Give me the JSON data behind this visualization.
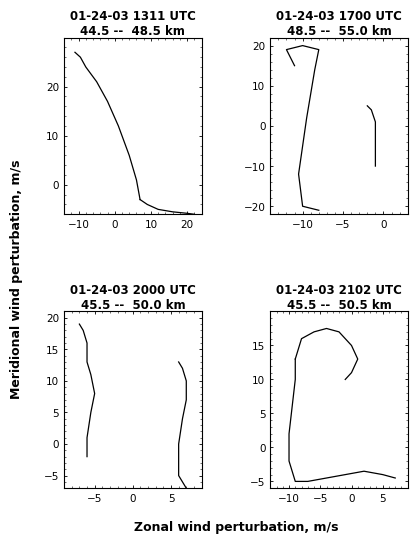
{
  "plots": [
    {
      "title_line1": "01-24-03 1311 UTC",
      "title_line2": "44.5 --  48.5 km",
      "xlim": [
        -14,
        24
      ],
      "ylim": [
        -6,
        30
      ],
      "xticks": [
        -10,
        0,
        10,
        20
      ],
      "yticks": [
        0,
        10,
        20
      ],
      "segments": [
        [
          [
            -11,
            27
          ],
          [
            -9.5,
            26
          ],
          [
            -8,
            24
          ],
          [
            -5,
            21
          ],
          [
            -2,
            17
          ],
          [
            1,
            12
          ],
          [
            4,
            6
          ],
          [
            6,
            1
          ],
          [
            7,
            -3
          ]
        ],
        [
          [
            7,
            -3
          ],
          [
            9,
            -4
          ],
          [
            12,
            -5
          ],
          [
            16,
            -5.5
          ],
          [
            20,
            -5.8
          ],
          [
            22,
            -6
          ]
        ]
      ]
    },
    {
      "title_line1": "01-24-03 1700 UTC",
      "title_line2": "48.5 --  55.0 km",
      "xlim": [
        -14,
        3
      ],
      "ylim": [
        -22,
        22
      ],
      "xticks": [
        -10,
        -5,
        0
      ],
      "yticks": [
        -20,
        -10,
        0,
        10,
        20
      ],
      "segments": [
        [
          [
            -11,
            15
          ],
          [
            -12,
            19
          ],
          [
            -10,
            20
          ],
          [
            -8,
            19
          ],
          [
            -8.5,
            14
          ],
          [
            -9,
            8
          ],
          [
            -9.5,
            2
          ],
          [
            -10,
            -5
          ],
          [
            -10.5,
            -12
          ],
          [
            -10,
            -20
          ],
          [
            -8,
            -21
          ]
        ],
        [
          [
            -2,
            5
          ],
          [
            -1.5,
            4
          ],
          [
            -1,
            1
          ],
          [
            -1,
            -3
          ],
          [
            -1,
            -7
          ],
          [
            -1,
            -10
          ]
        ]
      ]
    },
    {
      "title_line1": "01-24-03 2000 UTC",
      "title_line2": "45.5 --  50.0 km",
      "xlim": [
        -9,
        9
      ],
      "ylim": [
        -7,
        21
      ],
      "xticks": [
        -5,
        0,
        5
      ],
      "yticks": [
        -5,
        0,
        5,
        10,
        15,
        20
      ],
      "segments": [
        [
          [
            -7,
            19
          ],
          [
            -6.5,
            18
          ],
          [
            -6,
            16
          ],
          [
            -6,
            13
          ],
          [
            -5.5,
            11
          ],
          [
            -5,
            8
          ],
          [
            -5.5,
            5
          ],
          [
            -6,
            1
          ],
          [
            -6,
            -1
          ],
          [
            -6,
            -2
          ]
        ],
        [
          [
            6,
            13
          ],
          [
            6.5,
            12
          ],
          [
            7,
            10
          ],
          [
            7,
            7
          ],
          [
            6.5,
            4
          ],
          [
            6,
            0
          ],
          [
            6,
            -5
          ],
          [
            6.5,
            -6
          ],
          [
            7,
            -7
          ]
        ]
      ]
    },
    {
      "title_line1": "01-24-03 2102 UTC",
      "title_line2": "45.5 --  50.5 km",
      "xlim": [
        -13,
        9
      ],
      "ylim": [
        -6,
        20
      ],
      "xticks": [
        -10,
        -5,
        0,
        5
      ],
      "yticks": [
        -5,
        0,
        5,
        10,
        15
      ],
      "segments": [
        [
          [
            -9,
            13
          ],
          [
            -8,
            16
          ],
          [
            -6,
            17
          ],
          [
            -4,
            17.5
          ],
          [
            -2,
            17
          ],
          [
            0,
            15
          ],
          [
            1,
            13
          ],
          [
            0,
            11
          ],
          [
            -1,
            10
          ]
        ],
        [
          [
            -9,
            13
          ],
          [
            -9,
            10
          ],
          [
            -9.5,
            6
          ],
          [
            -10,
            2
          ],
          [
            -10,
            -2
          ],
          [
            -9,
            -5
          ],
          [
            -7,
            -5
          ],
          [
            -4,
            -4.5
          ],
          [
            -1,
            -4
          ],
          [
            2,
            -3.5
          ],
          [
            5,
            -4
          ],
          [
            7,
            -4.5
          ]
        ]
      ]
    }
  ],
  "ylabel": "Meridional wind perturbation, m/s",
  "xlabel": "Zonal wind perturbation, m/s",
  "bg_color": "#ffffff",
  "line_color": "#000000",
  "title_fontsize": 8.5,
  "label_fontsize": 9,
  "tick_fontsize": 7.5
}
